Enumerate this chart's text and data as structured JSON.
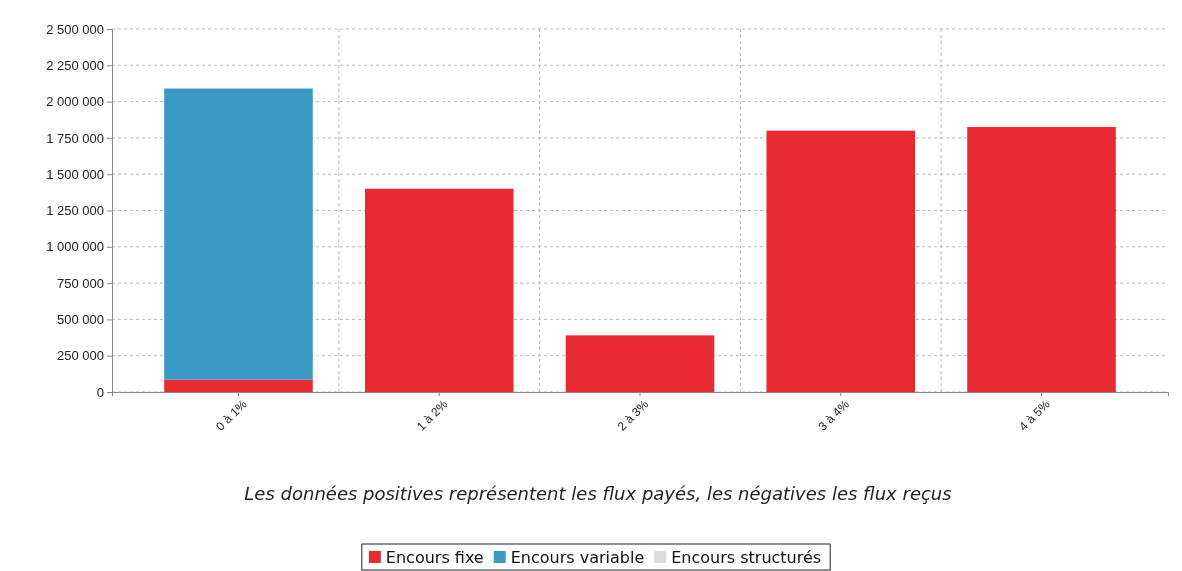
{
  "chart_data": {
    "type": "bar",
    "stacked": true,
    "categories": [
      "0 à 1%",
      "1 à 2%",
      "2 à 3%",
      "3 à 4%",
      "4 à 5%"
    ],
    "series": [
      {
        "name": "Encours fixe",
        "color": "#e82a32",
        "values": [
          85000,
          1400000,
          390000,
          1800000,
          1825000
        ]
      },
      {
        "name": "Encours variable",
        "color": "#3a9ac4",
        "values": [
          2005000,
          0,
          0,
          0,
          0
        ]
      },
      {
        "name": "Encours structurés",
        "color": "#d9dcdc",
        "values": [
          0,
          0,
          0,
          0,
          0
        ]
      }
    ],
    "ylim": [
      0,
      2500000
    ],
    "yticks": [
      {
        "value": 0,
        "label": "0"
      },
      {
        "value": 250000,
        "label": "250 000"
      },
      {
        "value": 500000,
        "label": "500 000"
      },
      {
        "value": 750000,
        "label": "750 000"
      },
      {
        "value": 1000000,
        "label": "1 000 000"
      },
      {
        "value": 1250000,
        "label": "1 250 000"
      },
      {
        "value": 1500000,
        "label": "1 500 000"
      },
      {
        "value": 1750000,
        "label": "1 750 000"
      },
      {
        "value": 2000000,
        "label": "2 000 000"
      },
      {
        "value": 2250000,
        "label": "2 250 000"
      },
      {
        "value": 2500000,
        "label": "2 500 000"
      }
    ],
    "grid": true,
    "legend": "bottom",
    "annotations": [
      "Les données positives représentent les flux payés, les négatives les flux reçus"
    ]
  }
}
